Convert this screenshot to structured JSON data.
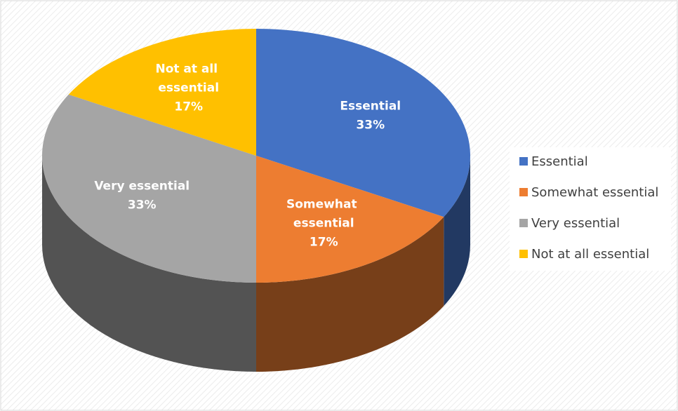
{
  "chart_data": {
    "type": "pie",
    "categories": [
      "Essential",
      "Somewhat essential",
      "Very essential",
      "Not at all essential"
    ],
    "values": [
      33,
      17,
      33,
      17
    ],
    "value_labels": [
      "33%",
      "17%",
      "33%",
      "17%"
    ],
    "colors": [
      "#4472c4",
      "#ed7d31",
      "#a5a5a5",
      "#ffc000"
    ],
    "legend": "right"
  }
}
